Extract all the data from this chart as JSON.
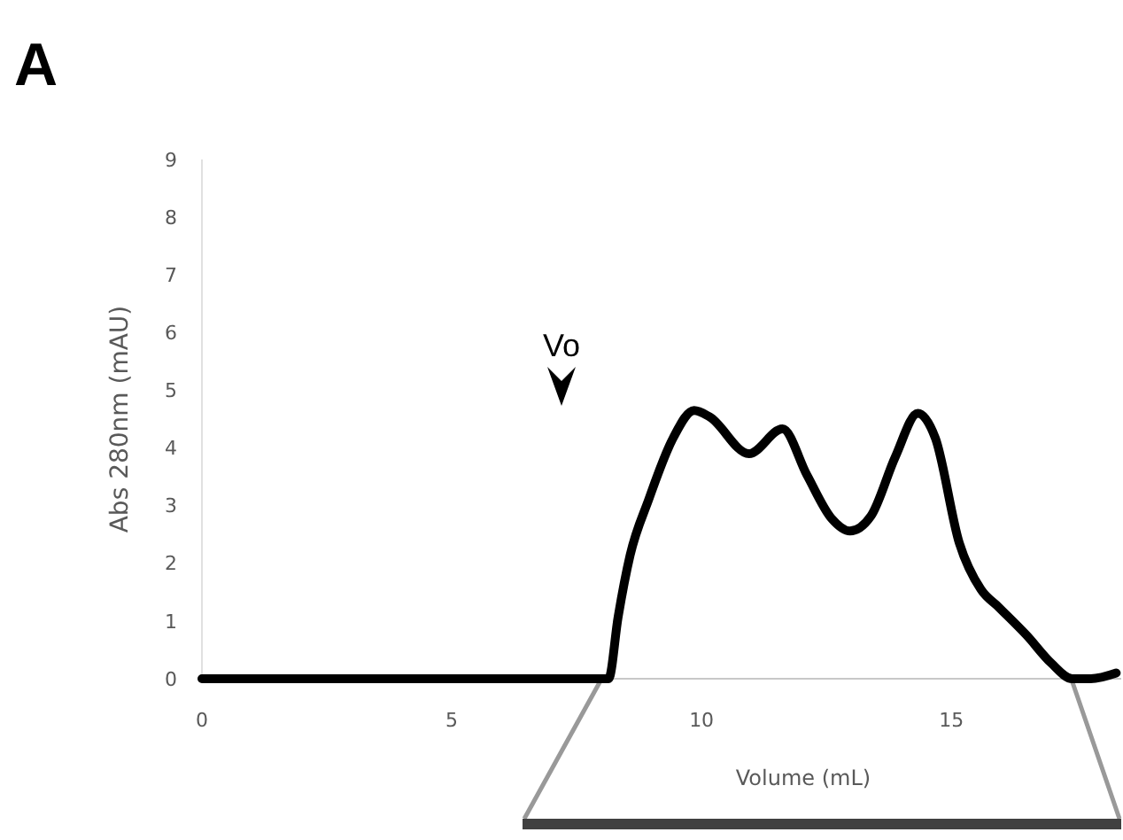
{
  "chart_data": {
    "type": "line",
    "xlabel": "Volume (mL)",
    "ylabel": "Abs 280nm (mAU)",
    "x": [
      0,
      8.14,
      8.33,
      8.57,
      8.94,
      9.43,
      9.85,
      10.16,
      10.95,
      11.62,
      12.11,
      12.6,
      12.97,
      13.39,
      13.88,
      14.33,
      14.68,
      15.16,
      15.59,
      15.96,
      16.51,
      17.0,
      17.42,
      17.79,
      18.3
    ],
    "series": [
      {
        "color": "#000000",
        "values": [
          0,
          0,
          1.07,
          2.14,
          3.1,
          4.17,
          4.65,
          4.54,
          3.9,
          4.33,
          3.53,
          2.78,
          2.56,
          2.82,
          3.85,
          4.6,
          4.17,
          2.35,
          1.55,
          1.23,
          0.75,
          0.27,
          0,
          0,
          0.1
        ]
      }
    ],
    "xlim": [
      0,
      18.4
    ],
    "ylim": [
      0,
      9
    ],
    "xticks": [
      0,
      5,
      10,
      15
    ],
    "yticks": [
      0,
      1,
      2,
      3,
      4,
      5,
      6,
      7,
      8,
      9
    ],
    "grid": false,
    "marker": "none",
    "line_style": "solid",
    "annotations": [
      "A",
      "Vo"
    ]
  }
}
